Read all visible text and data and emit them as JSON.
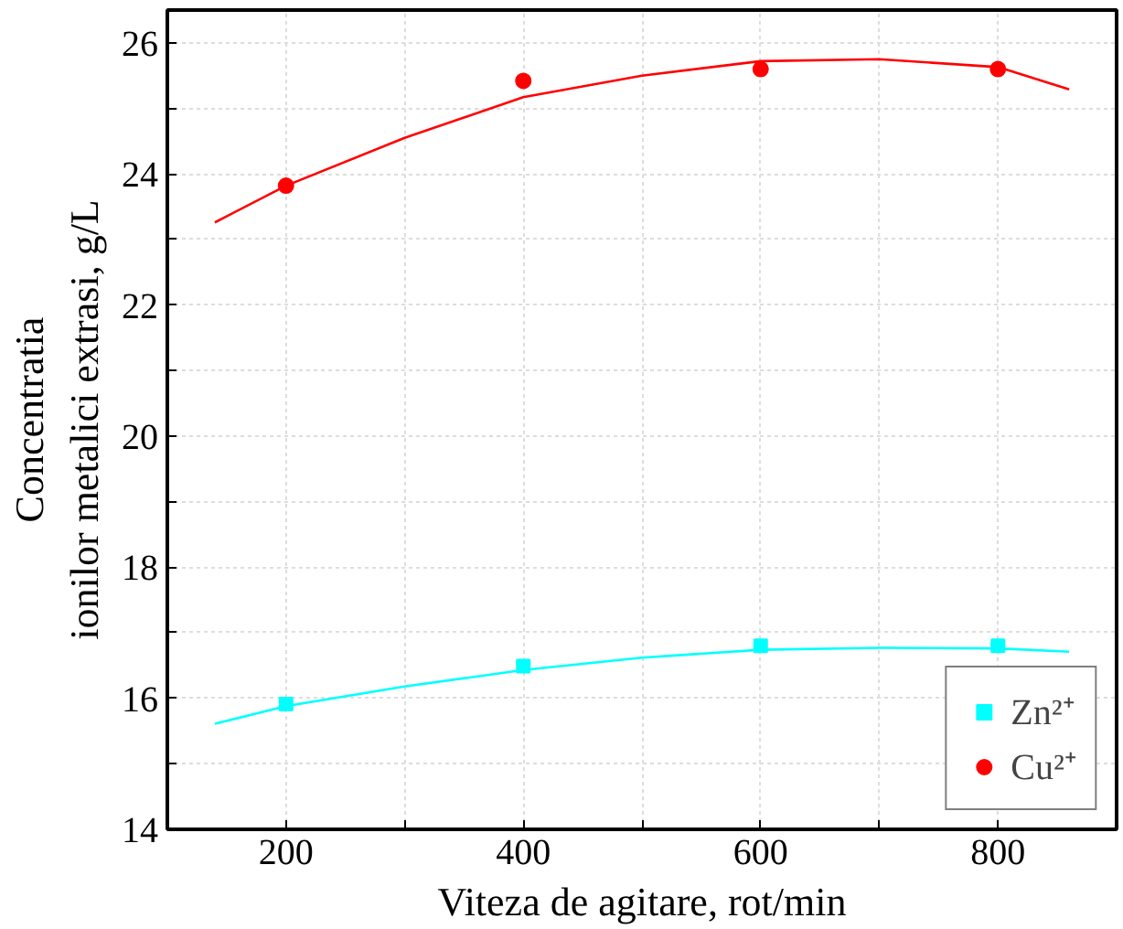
{
  "chart_data": {
    "type": "scatter",
    "xlabel": "Viteza de agitare, rot/min",
    "ylabel": "Concentratia\nionilor metalici extrasi, g/L",
    "xlim": [
      100,
      900
    ],
    "ylim": [
      14,
      26.5
    ],
    "xticks": [
      {
        "value": 200,
        "label": "200"
      },
      {
        "value": 300,
        "label": null
      },
      {
        "value": 400,
        "label": "400"
      },
      {
        "value": 500,
        "label": null
      },
      {
        "value": 600,
        "label": "600"
      },
      {
        "value": 700,
        "label": null
      },
      {
        "value": 800,
        "label": "800"
      }
    ],
    "yticks": [
      14,
      {
        "value": 15,
        "label": null
      },
      16,
      {
        "value": 17,
        "label": null
      },
      18,
      {
        "value": 19,
        "label": null
      },
      20,
      {
        "value": 21,
        "label": null
      },
      22,
      {
        "value": 23,
        "label": null
      },
      24,
      {
        "value": 25,
        "label": null
      },
      26
    ],
    "grid": true,
    "legend": "bottom right",
    "series": [
      {
        "name": "Zn²⁺",
        "color": "#00ffff",
        "marker": "square",
        "x": [
          200,
          400,
          600,
          800
        ],
        "values": [
          15.91,
          16.49,
          16.8,
          16.8
        ]
      },
      {
        "name": "Cu²⁺",
        "color": "#ff0000",
        "marker": "circle",
        "x": [
          200,
          400,
          600,
          800
        ],
        "values": [
          23.82,
          25.42,
          25.6,
          25.6
        ]
      },
      {
        "type": "line",
        "color": "#00ffff",
        "x": [
          140,
          200,
          300,
          400,
          500,
          600,
          700,
          800,
          860
        ],
        "values": [
          15.61,
          15.88,
          16.18,
          16.43,
          16.62,
          16.74,
          16.77,
          16.76,
          16.71
        ]
      },
      {
        "type": "line",
        "color": "#ff0000",
        "x": [
          140,
          200,
          300,
          400,
          500,
          600,
          700,
          800,
          860
        ],
        "values": [
          23.26,
          23.82,
          24.55,
          25.17,
          25.5,
          25.72,
          25.75,
          25.63,
          25.29
        ]
      }
    ]
  }
}
